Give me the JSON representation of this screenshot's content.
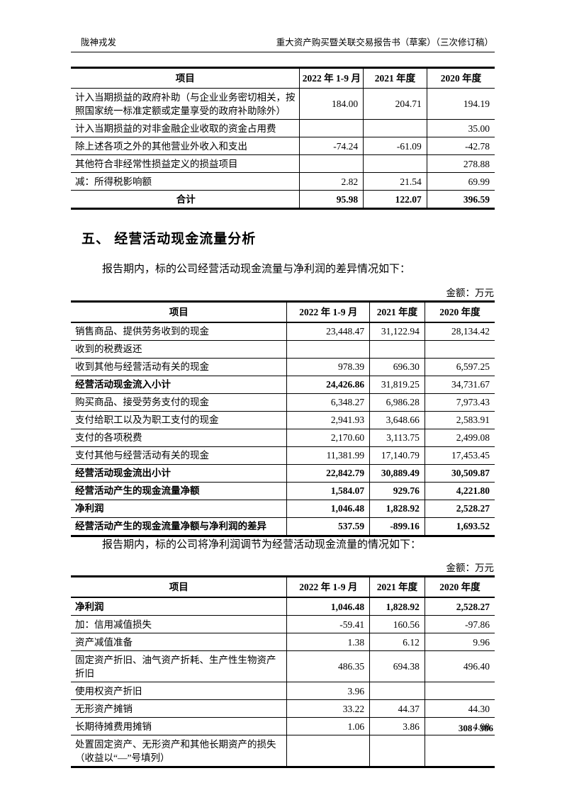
{
  "header": {
    "company": "陇神戎发",
    "report_title": "重大资产购买暨关联交易报告书（草案）（三次修订稿）"
  },
  "section": {
    "title": "五、 经营活动现金流量分析"
  },
  "paragraphs": {
    "diff_intro": "报告期内，标的公司经营活动现金流量与净利润的差异情况如下：",
    "adjust_intro": "报告期内，标的公司将净利润调节为经营活动现金流量的情况如下："
  },
  "unit_label": "金额：万元",
  "table_headers": [
    "项目",
    "2022 年 1-9 月",
    "2021 年度",
    "2020 年度"
  ],
  "table1": {
    "rows": [
      {
        "label": "计入当期损益的政府补助（与企业业务密切相关，按照国家统一标准定额或定量享受的政府补助除外）",
        "values": [
          "184.00",
          "204.71",
          "194.19"
        ]
      },
      {
        "label": "计入当期损益的对非金融企业收取的资金占用费",
        "values": [
          "",
          "",
          "35.00"
        ]
      },
      {
        "label": "除上述各项之外的其他营业外收入和支出",
        "values": [
          "-74.24",
          "-61.09",
          "-42.78"
        ]
      },
      {
        "label": "其他符合非经常性损益定义的损益项目",
        "values": [
          "",
          "",
          "278.88"
        ]
      },
      {
        "label": "减：所得税影响额",
        "values": [
          "2.82",
          "21.54",
          "69.99"
        ]
      },
      {
        "label": "合计",
        "values": [
          "95.98",
          "122.07",
          "396.59"
        ],
        "center": true,
        "label_bold": true,
        "value_bold": [
          true,
          true,
          true
        ]
      }
    ]
  },
  "table2": {
    "rows": [
      {
        "label": "销售商品、提供劳务收到的现金",
        "values": [
          "23,448.47",
          "31,122.94",
          "28,134.42"
        ]
      },
      {
        "label": "收到的税费返还",
        "values": [
          "",
          "",
          ""
        ]
      },
      {
        "label": "收到其他与经营活动有关的现金",
        "values": [
          "978.39",
          "696.30",
          "6,597.25"
        ]
      },
      {
        "label": "经营活动现金流入小计",
        "values": [
          "24,426.86",
          "31,819.25",
          "34,731.67"
        ],
        "label_bold": true,
        "value_bold": [
          true,
          false,
          false
        ]
      },
      {
        "label": "购买商品、接受劳务支付的现金",
        "values": [
          "6,348.27",
          "6,986.28",
          "7,973.43"
        ]
      },
      {
        "label": "支付给职工以及为职工支付的现金",
        "values": [
          "2,941.93",
          "3,648.66",
          "2,583.91"
        ]
      },
      {
        "label": "支付的各项税费",
        "values": [
          "2,170.60",
          "3,113.75",
          "2,499.08"
        ]
      },
      {
        "label": "支付其他与经营活动有关的现金",
        "values": [
          "11,381.99",
          "17,140.79",
          "17,453.45"
        ]
      },
      {
        "label": "经营活动现金流出小计",
        "values": [
          "22,842.79",
          "30,889.49",
          "30,509.87"
        ],
        "label_bold": true,
        "value_bold": [
          true,
          true,
          true
        ]
      },
      {
        "label": "经营活动产生的现金流量净额",
        "values": [
          "1,584.07",
          "929.76",
          "4,221.80"
        ],
        "label_bold": true,
        "value_bold": [
          true,
          true,
          true
        ]
      },
      {
        "label": "净利润",
        "values": [
          "1,046.48",
          "1,828.92",
          "2,528.27"
        ],
        "label_bold": true,
        "value_bold": [
          true,
          true,
          true
        ]
      },
      {
        "label": "经营活动产生的现金流量净额与净利润的差异",
        "values": [
          "537.59",
          "-899.16",
          "1,693.52"
        ],
        "label_bold": true,
        "value_bold": [
          true,
          true,
          true
        ]
      }
    ]
  },
  "table3": {
    "rows": [
      {
        "label": "净利润",
        "values": [
          "1,046.48",
          "1,828.92",
          "2,528.27"
        ],
        "label_bold": true,
        "value_bold": [
          true,
          true,
          true
        ]
      },
      {
        "label": "加：信用减值损失",
        "values": [
          "-59.41",
          "160.56",
          "-97.86"
        ]
      },
      {
        "label": "资产减值准备",
        "values": [
          "1.38",
          "6.12",
          "9.96"
        ]
      },
      {
        "label": "固定资产折旧、油气资产折耗、生产性生物资产折旧",
        "values": [
          "486.35",
          "694.38",
          "496.40"
        ]
      },
      {
        "label": "使用权资产折旧",
        "values": [
          "3.96",
          "",
          ""
        ]
      },
      {
        "label": "无形资产摊销",
        "values": [
          "33.22",
          "44.37",
          "44.30"
        ]
      },
      {
        "label": "长期待摊费用摊销",
        "values": [
          "1.06",
          "3.86",
          "4.08"
        ]
      },
      {
        "label": "处置固定资产、无形资产和其他长期资产的损失（收益以“—”号填列）",
        "values": [
          "",
          "",
          ""
        ]
      }
    ]
  },
  "footer": {
    "page_number": "308 / 386"
  }
}
